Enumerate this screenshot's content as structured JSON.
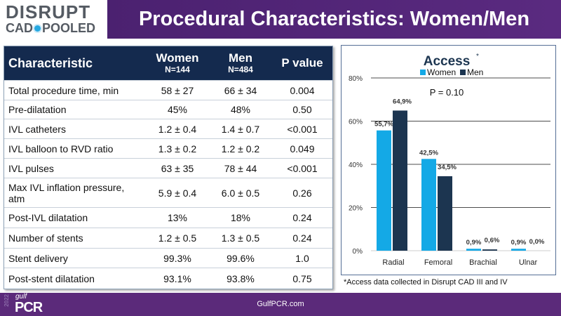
{
  "logo": {
    "line1": "DISRUPT",
    "line2a": "CAD",
    "line2b": "POOLED"
  },
  "title": "Procedural Characteristics: Women/Men",
  "table": {
    "headers": {
      "c0": "Characteristic",
      "women": "Women",
      "women_n": "N=144",
      "men": "Men",
      "men_n": "N=484",
      "p": "P value"
    },
    "rows": [
      [
        "Total procedure time, min",
        "58 ± 27",
        "66 ± 34",
        "0.004"
      ],
      [
        "Pre-dilatation",
        "45%",
        "48%",
        "0.50"
      ],
      [
        "IVL catheters",
        "1.2 ± 0.4",
        "1.4 ± 0.7",
        "<0.001"
      ],
      [
        "IVL balloon to RVD ratio",
        "1.3 ± 0.2",
        "1.2 ± 0.2",
        "0.049"
      ],
      [
        "IVL pulses",
        "63 ± 35",
        "78 ± 44",
        "<0.001"
      ],
      [
        "Max IVL inflation pressure, atm",
        "5.9 ± 0.4",
        "6.0 ± 0.5",
        "0.26"
      ],
      [
        "Post-IVL dilatation",
        "13%",
        "18%",
        "0.24"
      ],
      [
        "Number of stents",
        "1.2 ± 0.5",
        "1.3 ± 0.5",
        "0.24"
      ],
      [
        "Stent delivery",
        "99.3%",
        "99.6%",
        "1.0"
      ],
      [
        "Post-stent dilatation",
        "93.1%",
        "93.8%",
        "0.75"
      ]
    ]
  },
  "chart_data": {
    "type": "bar",
    "title": "Access",
    "title_mark": "*",
    "categories": [
      "Radial",
      "Femoral",
      "Brachial",
      "Ulnar"
    ],
    "series": [
      {
        "name": "Women",
        "color": "#14a9e6",
        "values": [
          55.7,
          42.5,
          0.9,
          0.9
        ],
        "labels": [
          "55,7%",
          "42,5%",
          "0,9%",
          "0,9%"
        ]
      },
      {
        "name": "Men",
        "color": "#1c3550",
        "values": [
          64.9,
          34.5,
          0.6,
          0.0
        ],
        "labels": [
          "64,9%",
          "34,5%",
          "0,6%",
          "0,0%"
        ]
      }
    ],
    "ylim": [
      0,
      80
    ],
    "yticks": [
      "0%",
      "20%",
      "40%",
      "60%",
      "80%"
    ],
    "annotation": "P = 0.10",
    "legend": "top"
  },
  "footnote": "*Access data collected in Disrupt CAD III and IV",
  "footer": {
    "url": "GulfPCR.com",
    "year": "2022",
    "gulf": "gulf",
    "pcr": "PCR"
  }
}
